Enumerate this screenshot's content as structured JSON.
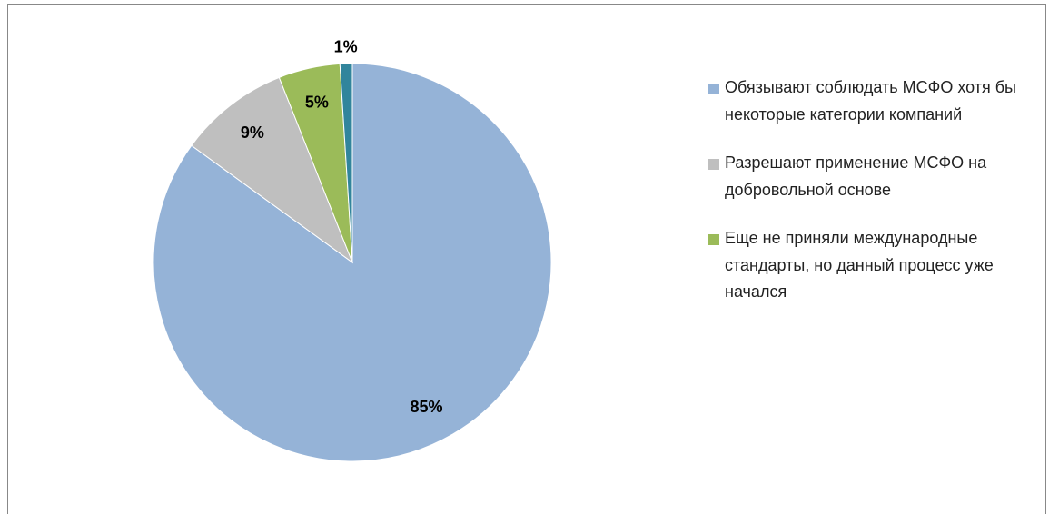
{
  "chart_data": {
    "type": "pie",
    "categories": [
      "Обязывают соблюдать МСФО хотя бы некоторые категории компаний",
      "Разрешают применение МСФО на добровольной основе",
      "Еще не приняли международные стандарты, но данный процесс уже начался",
      null
    ],
    "values": [
      85,
      9,
      5,
      1
    ],
    "value_labels": [
      "85%",
      "9%",
      "5%",
      "1%"
    ],
    "colors": [
      "#95b3d7",
      "#bfbfbf",
      "#9bbb59",
      "#31859c"
    ],
    "legend": "right"
  }
}
